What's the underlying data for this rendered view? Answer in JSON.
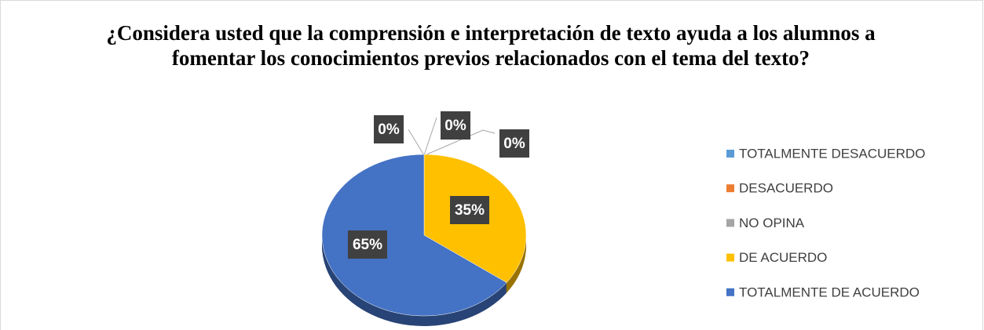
{
  "chart_data": {
    "type": "pie",
    "title": "¿Considera usted que la comprensión e interpretación de texto ayuda a los alumnos a fomentar los conocimientos previos relacionados con el tema del texto?",
    "categories": [
      "TOTALMENTE DESACUERDO",
      "DESACUERDO",
      "NO OPINA",
      "DE ACUERDO",
      "TOTALMENTE DE ACUERDO"
    ],
    "values": [
      0,
      0,
      0,
      35,
      65
    ],
    "value_labels": [
      "0%",
      "0%",
      "0%",
      "35%",
      "65%"
    ],
    "colors": [
      "#5b9bd5",
      "#ed7d31",
      "#a5a5a5",
      "#ffc000",
      "#4472c4"
    ],
    "legend": "right"
  }
}
